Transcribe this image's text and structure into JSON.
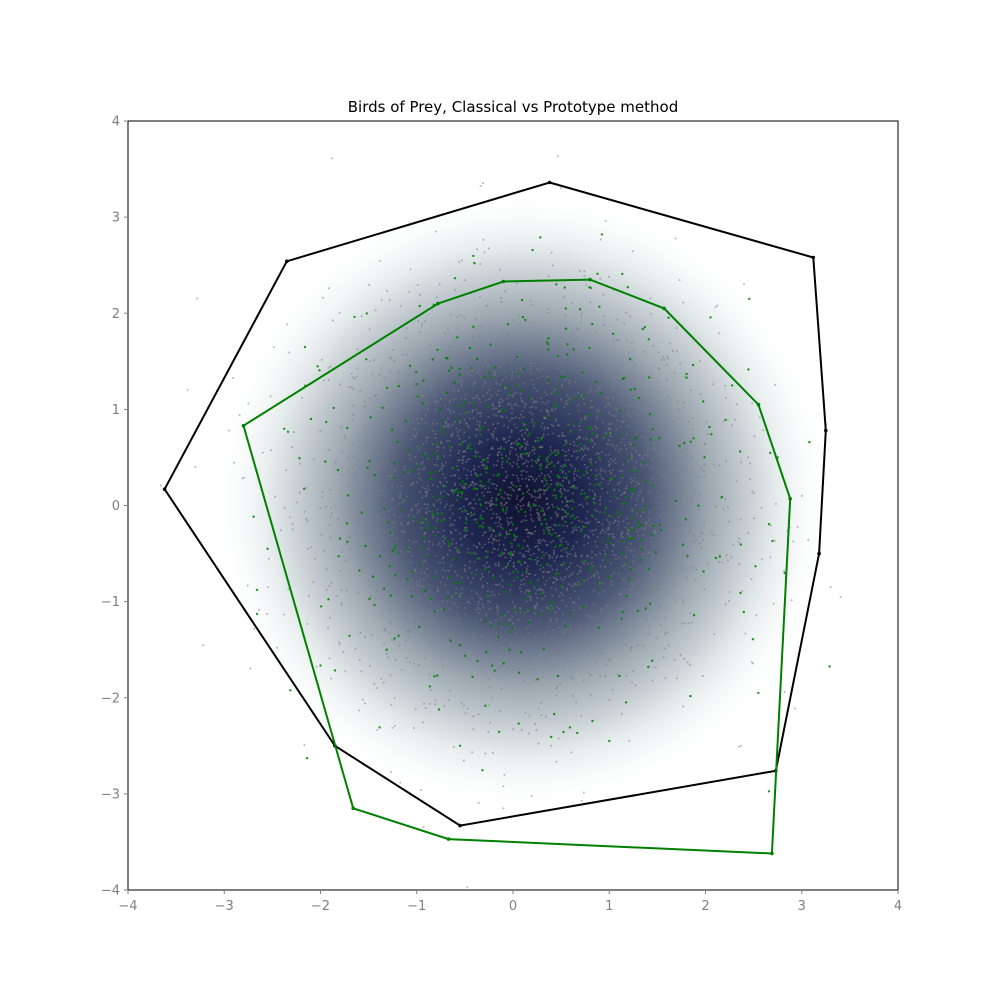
{
  "chart_data": {
    "type": "scatter",
    "title": "Birds of Prey, Classical vs Prototype method",
    "xlabel": "",
    "ylabel": "",
    "xlim": [
      -4,
      4
    ],
    "ylim": [
      -4,
      4
    ],
    "x_ticks": [
      -4,
      -3,
      -2,
      -1,
      0,
      1,
      2,
      3,
      4
    ],
    "y_ticks": [
      -4,
      -3,
      -2,
      -1,
      0,
      1,
      2,
      3,
      4
    ],
    "x_tick_labels": [
      "−4",
      "−3",
      "−2",
      "−1",
      "0",
      "1",
      "2",
      "3",
      "4"
    ],
    "y_tick_labels": [
      "−4",
      "−3",
      "−2",
      "−1",
      "0",
      "1",
      "2",
      "3",
      "4"
    ],
    "grid": false,
    "legend": "none",
    "density_background": {
      "center": [
        0.1,
        0.05
      ],
      "colormap": "bone_r",
      "peak_color": "#0e1230"
    },
    "scatter_series": [
      {
        "color": "#808080",
        "count": 3000,
        "distribution": "gaussian",
        "mean": [
          0.1,
          0.05
        ],
        "std": 1.0,
        "sample_points": [
          [
            -3.3,
            0.4
          ],
          [
            -2.95,
            0.78
          ],
          [
            -2.6,
            0.55
          ],
          [
            3.3,
            -0.85
          ],
          [
            3.0,
            0.1
          ],
          [
            2.4,
            2.3
          ],
          [
            0.5,
            3.3
          ],
          [
            -0.8,
            2.85
          ],
          [
            -0.1,
            -3.15
          ]
        ]
      },
      {
        "color": "#008000",
        "count": 600,
        "distribution": "gaussian",
        "mean": [
          0.1,
          0.05
        ],
        "std": 1.0,
        "sample_points": [
          [
            -2.1,
            0.9
          ],
          [
            -2.55,
            -0.45
          ],
          [
            -0.55,
            -2.5
          ],
          [
            2.55,
            -1.95
          ],
          [
            2.75,
            0.5
          ],
          [
            0.45,
            2.3
          ],
          [
            1.0,
            -2.45
          ]
        ]
      }
    ],
    "hulls": [
      {
        "color": "#000000",
        "vertices": [
          [
            0.38,
            3.36
          ],
          [
            3.12,
            2.58
          ],
          [
            3.25,
            0.78
          ],
          [
            3.18,
            -0.5
          ],
          [
            2.73,
            -2.76
          ],
          [
            -0.55,
            -3.33
          ],
          [
            -1.85,
            -2.5
          ],
          [
            -3.62,
            0.17
          ],
          [
            -2.35,
            2.54
          ]
        ]
      },
      {
        "color": "#008000",
        "vertices": [
          [
            -0.1,
            2.33
          ],
          [
            0.8,
            2.35
          ],
          [
            1.57,
            2.05
          ],
          [
            2.55,
            1.05
          ],
          [
            2.88,
            0.07
          ],
          [
            2.69,
            -3.62
          ],
          [
            -0.67,
            -3.47
          ],
          [
            -1.66,
            -3.15
          ],
          [
            -2.8,
            0.83
          ],
          [
            -0.78,
            2.1
          ]
        ]
      }
    ]
  }
}
